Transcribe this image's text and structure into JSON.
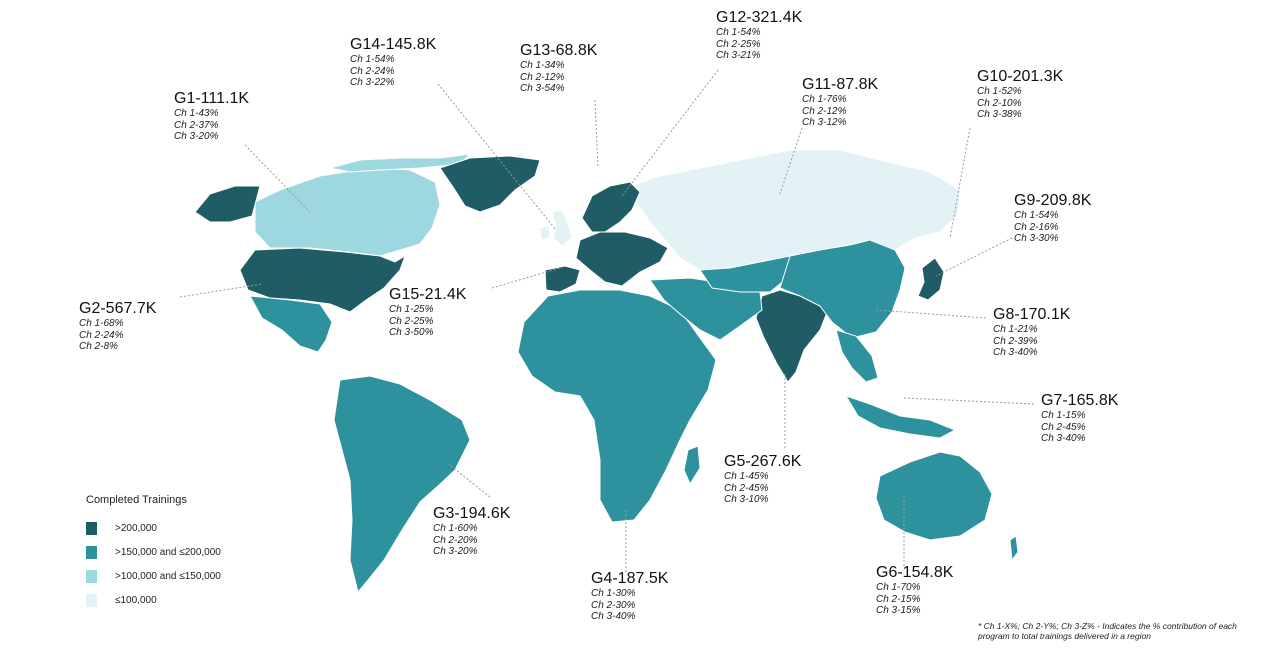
{
  "legend": {
    "title": "Completed Trainings",
    "items": [
      {
        "label": ">200,000",
        "color": "#1f5c66"
      },
      {
        "label": ">150,000 and ≤200,000",
        "color": "#2e929e"
      },
      {
        "label": ">100,000 and ≤150,000",
        "color": "#9dd8e0"
      },
      {
        "label": "≤100,000",
        "color": "#e3f3f5"
      }
    ]
  },
  "groups": [
    {
      "title": "G1-111.1K",
      "lines": [
        "Ch 1-43%",
        "Ch 2-37%",
        "Ch 3-20%"
      ]
    },
    {
      "title": "G2-567.7K",
      "lines": [
        "Ch 1-68%",
        "Ch 2-24%",
        "Ch 2-8%"
      ]
    },
    {
      "title": "G3-194.6K",
      "lines": [
        "Ch 1-60%",
        "Ch 2-20%",
        "Ch 3-20%"
      ]
    },
    {
      "title": "G4-187.5K",
      "lines": [
        "Ch 1-30%",
        "Ch 2-30%",
        "Ch 3-40%"
      ]
    },
    {
      "title": "G5-267.6K",
      "lines": [
        "Ch 1-45%",
        "Ch 2-45%",
        "Ch 3-10%"
      ]
    },
    {
      "title": "G6-154.8K",
      "lines": [
        "Ch 1-70%",
        "Ch 2-15%",
        "Ch 3-15%"
      ]
    },
    {
      "title": "G7-165.8K",
      "lines": [
        "Ch 1-15%",
        "Ch 2-45%",
        "Ch 3-40%"
      ]
    },
    {
      "title": "G8-170.1K",
      "lines": [
        "Ch 1-21%",
        "Ch 2-39%",
        "Ch 3-40%"
      ]
    },
    {
      "title": "G9-209.8K",
      "lines": [
        "Ch 1-54%",
        "Ch 2-16%",
        "Ch 3-30%"
      ]
    },
    {
      "title": "G10-201.3K",
      "lines": [
        "Ch 1-52%",
        "Ch 2-10%",
        "Ch 3-38%"
      ]
    },
    {
      "title": "G11-87.8K",
      "lines": [
        "Ch 1-76%",
        "Ch 2-12%",
        "Ch 3-12%"
      ]
    },
    {
      "title": "G12-321.4K",
      "lines": [
        "Ch 1-54%",
        "Ch 2-25%",
        "Ch 3-21%"
      ]
    },
    {
      "title": "G13-68.8K",
      "lines": [
        "Ch 1-34%",
        "Ch 2-12%",
        "Ch 3-54%"
      ]
    },
    {
      "title": "G14-145.8K",
      "lines": [
        "Ch 1-54%",
        "Ch 2-24%",
        "Ch 3-22%"
      ]
    },
    {
      "title": "G15-21.4K",
      "lines": [
        "Ch 1-25%",
        "Ch 2-25%",
        "Ch 3-50%"
      ]
    }
  ],
  "footnote": "* Ch 1-X%; Ch 2-Y%; Ch 3-Z% - Indicates the % contribution of each program to total trainings delivered in a region"
}
